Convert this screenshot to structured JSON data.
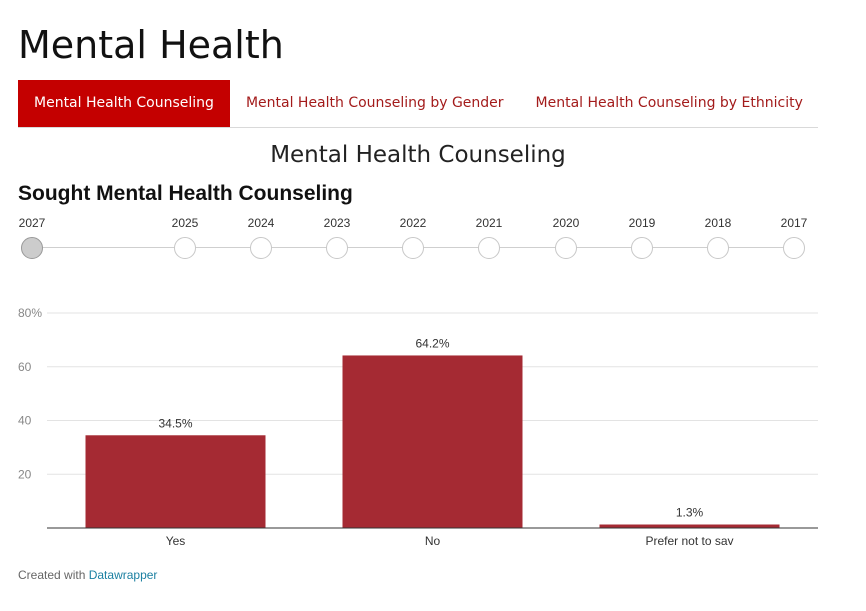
{
  "page_title": "Mental Health",
  "tabs": [
    {
      "label": "Mental Health Counseling",
      "active": true
    },
    {
      "label": "Mental Health Counseling by Gender",
      "active": false
    },
    {
      "label": "Mental Health Counseling by Ethnicity",
      "active": false
    }
  ],
  "section_title": "Mental Health Counseling",
  "timeline": {
    "years": [
      "2027",
      "2025",
      "2024",
      "2023",
      "2022",
      "2021",
      "2020",
      "2019",
      "2018",
      "2017"
    ],
    "selected": "2027"
  },
  "colors": {
    "accent": "#c40000",
    "tab_text": "#a31b1b",
    "bar": "#a52a33",
    "link": "#1d81a2"
  },
  "chart_data": {
    "type": "bar",
    "title": "Sought Mental Health Counseling",
    "categories": [
      "Yes",
      "No",
      "Prefer not to say"
    ],
    "values": [
      34.5,
      64.2,
      1.3
    ],
    "value_labels": [
      "34.5%",
      "64.2%",
      "1.3%"
    ],
    "yticks": [
      20,
      40,
      60,
      80
    ],
    "ytick_labels": [
      "20",
      "40",
      "60",
      "80%"
    ],
    "ylim": [
      0,
      80
    ],
    "grid": true
  },
  "footer": {
    "prefix": "Created with",
    "link": "Datawrapper"
  }
}
